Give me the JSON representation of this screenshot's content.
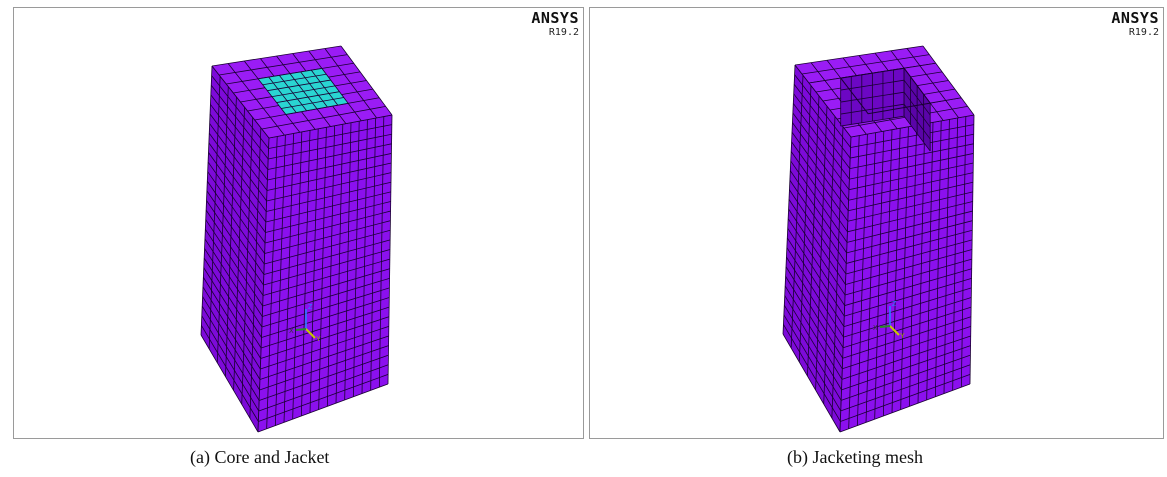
{
  "panels": [
    {
      "brand": "ANSYS",
      "version": "R19.2",
      "caption": "(a) Core and Jacket",
      "top_face": "core-and-jacket",
      "axis_labels": {
        "z": "Z",
        "y": "Y",
        "x": "X"
      }
    },
    {
      "brand": "ANSYS",
      "version": "R19.2",
      "caption": "(b) Jacketing mesh",
      "top_face": "hollow-jacket",
      "axis_labels": {
        "z": "Z",
        "y": "Y",
        "x": "X"
      }
    }
  ],
  "colors": {
    "jacket": "#8b10ee",
    "jacket_top": "#9a1cf5",
    "jacket_side_dark": "#7d0ad9",
    "core": "#2ad5d2",
    "mesh_lines": "#1a0033",
    "axis_z": "#2a7fff",
    "axis_y": "#c8c800",
    "axis_x": "#2a8a2a"
  },
  "mesh": {
    "left_face_columns": 7,
    "front_face_columns": 15,
    "height_rows": 28,
    "top_grid": 8
  }
}
